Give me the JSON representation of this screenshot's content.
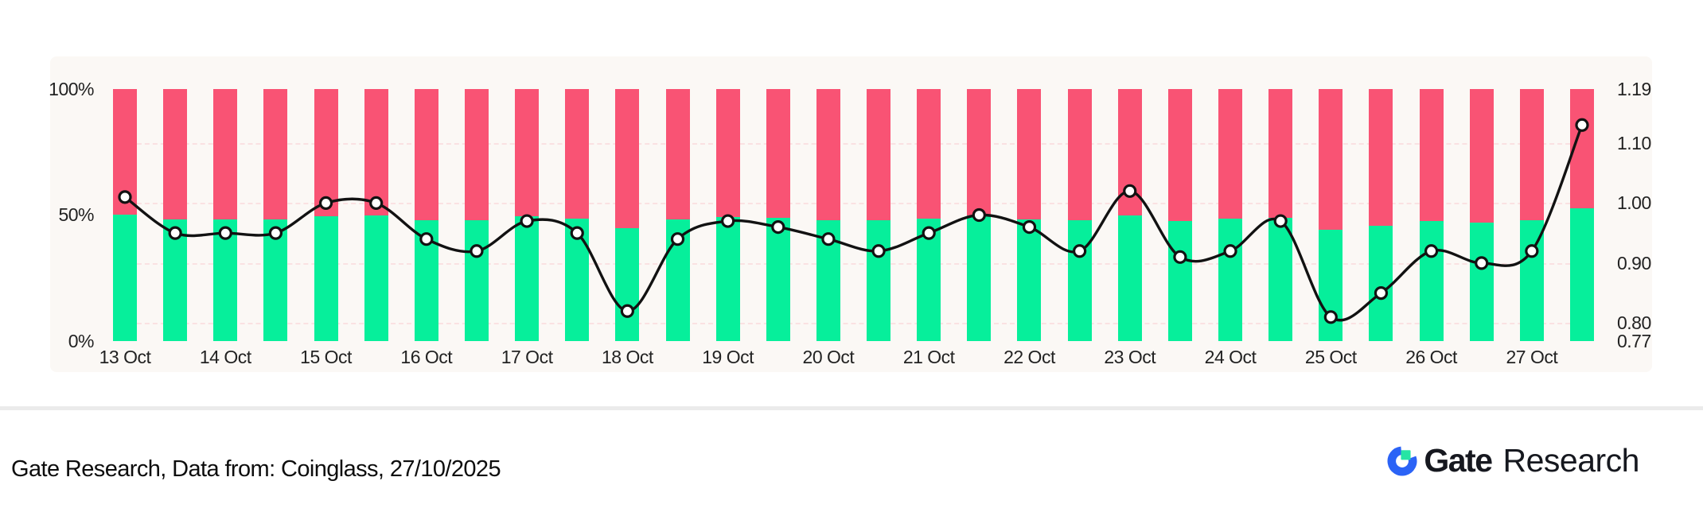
{
  "chart_data": {
    "type": "bar",
    "stacked": true,
    "bars_per_day": 2,
    "x_tick_labels": [
      "13 Oct",
      "14 Oct",
      "15 Oct",
      "16 Oct",
      "17 Oct",
      "18 Oct",
      "19 Oct",
      "20 Oct",
      "21 Oct",
      "22 Oct",
      "23 Oct",
      "24 Oct",
      "25 Oct",
      "26 Oct",
      "27 Oct"
    ],
    "left_axis": {
      "ticks": [
        "100%",
        "50%",
        "0%"
      ],
      "min": 0,
      "max": 100
    },
    "right_axis": {
      "ticks": [
        "1.19",
        "1.10",
        "1.00",
        "0.90",
        "0.80",
        "0.77"
      ],
      "tick_values": [
        1.19,
        1.1,
        1.0,
        0.9,
        0.8,
        0.77
      ],
      "min": 0.77,
      "max": 1.19,
      "gridline_values": [
        1.1,
        1.0,
        0.9,
        0.8
      ]
    },
    "series": [
      {
        "name": "green-bottom-pct",
        "values": [
          50.2,
          48.3,
          48.3,
          48.3,
          49.6,
          50.0,
          48.1,
          48.1,
          49.4,
          48.7,
          44.7,
          48.4,
          49.3,
          49.0,
          47.8,
          47.8,
          48.7,
          49.7,
          48.4,
          47.8,
          50.0,
          47.5,
          48.6,
          49.0,
          44.3,
          45.6,
          47.5,
          46.9,
          47.8,
          52.8
        ],
        "color": "#06ef9b"
      },
      {
        "name": "pink-top-pct",
        "note": "100 minus green-bottom-pct",
        "color": "#f95374"
      }
    ],
    "line_series": {
      "name": "ratio-line",
      "axis": "right",
      "values": [
        1.01,
        0.95,
        0.95,
        0.95,
        1.0,
        1.0,
        0.94,
        0.92,
        0.97,
        0.95,
        0.82,
        0.94,
        0.97,
        0.96,
        0.94,
        0.92,
        0.95,
        0.98,
        0.96,
        0.92,
        1.02,
        0.91,
        0.92,
        0.97,
        0.81,
        0.85,
        0.92,
        0.9,
        0.92,
        1.13
      ],
      "color": "#121212",
      "marker_fill": "#ffffff"
    },
    "legend": "none",
    "panel_background": "#fbf8f5"
  },
  "footer": {
    "source_text": "Gate Research, Data from: Coinglass, 27/10/2025",
    "logo": {
      "bold": "Gate",
      "regular": "Research",
      "blue": "#2b63f6",
      "green": "#26e5a4",
      "text_color": "#16181f"
    }
  }
}
